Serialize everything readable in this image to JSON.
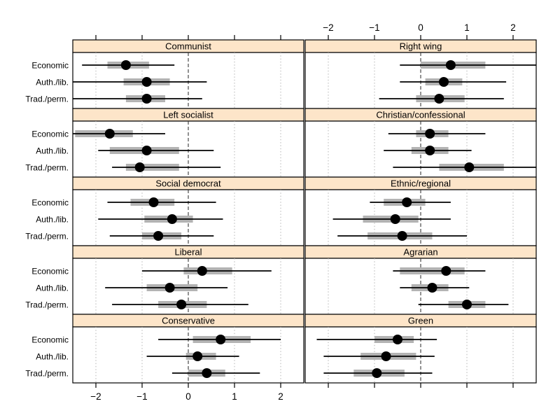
{
  "figure": {
    "background": "#ffffff",
    "strip_fill": "#fde5c9",
    "strip_border": "#000000",
    "panel_border": "#000000",
    "panel_fill": "#ffffff",
    "grid_color": "#b5b5b5",
    "zero_line_color": "#3a3a3a",
    "bar_color": "#b3b3b3",
    "line_color": "#000000",
    "dot_color": "#000000"
  },
  "chart_data": {
    "type": "dotplot",
    "description": "Trellis dotplot grid: party-family estimates on three policy dimensions with point estimate (dot), thick inner interval (grey bar) and thin outer interval (black line)",
    "layout": {
      "rows": 5,
      "cols": 2
    },
    "x_axis": {
      "min": -2.5,
      "max": 2.5,
      "ticks": [
        -2,
        -1,
        0,
        1,
        2
      ],
      "tick_labels": [
        "−2",
        "−1",
        "0",
        "1",
        "2"
      ],
      "top_labels_side": "right-column",
      "bottom_labels_side": "left-column",
      "zero_reference_line": true,
      "grid": "dotted-at-ticks"
    },
    "categories": [
      "Economic",
      "Auth./lib.",
      "Trad./perm."
    ],
    "panels": [
      {
        "title": "Communist",
        "grid_row": 0,
        "grid_col": 0,
        "estimates": [
          {
            "dim": "Economic",
            "dot": -1.35,
            "thick": [
              -1.75,
              -0.85
            ],
            "thin": [
              -2.3,
              -0.3
            ]
          },
          {
            "dim": "Auth./lib.",
            "dot": -0.9,
            "thick": [
              -1.4,
              -0.4
            ],
            "thin": [
              -2.5,
              0.4
            ]
          },
          {
            "dim": "Trad./perm.",
            "dot": -0.9,
            "thick": [
              -1.35,
              -0.5
            ],
            "thin": [
              -2.5,
              0.3
            ]
          }
        ]
      },
      {
        "title": "Right wing",
        "grid_row": 0,
        "grid_col": 1,
        "estimates": [
          {
            "dim": "Economic",
            "dot": 0.65,
            "thick": [
              0.0,
              1.4
            ],
            "thin": [
              -0.45,
              2.5
            ]
          },
          {
            "dim": "Auth./lib.",
            "dot": 0.5,
            "thick": [
              0.1,
              0.9
            ],
            "thin": [
              -0.45,
              1.85
            ]
          },
          {
            "dim": "Trad./perm.",
            "dot": 0.4,
            "thick": [
              -0.1,
              0.95
            ],
            "thin": [
              -0.9,
              1.8
            ]
          }
        ]
      },
      {
        "title": "Left socialist",
        "grid_row": 1,
        "grid_col": 0,
        "estimates": [
          {
            "dim": "Economic",
            "dot": -1.7,
            "thick": [
              -2.45,
              -1.2
            ],
            "thin": [
              -2.5,
              -0.5
            ]
          },
          {
            "dim": "Auth./lib.",
            "dot": -0.9,
            "thick": [
              -1.7,
              -0.2
            ],
            "thin": [
              -1.95,
              0.55
            ]
          },
          {
            "dim": "Trad./perm.",
            "dot": -1.05,
            "thick": [
              -1.35,
              -0.2
            ],
            "thin": [
              -1.65,
              0.7
            ]
          }
        ]
      },
      {
        "title": "Christian/confessional",
        "grid_row": 1,
        "grid_col": 1,
        "estimates": [
          {
            "dim": "Economic",
            "dot": 0.2,
            "thick": [
              -0.1,
              0.6
            ],
            "thin": [
              -0.7,
              1.4
            ]
          },
          {
            "dim": "Auth./lib.",
            "dot": 0.2,
            "thick": [
              -0.2,
              0.6
            ],
            "thin": [
              -0.8,
              1.1
            ]
          },
          {
            "dim": "Trad./perm.",
            "dot": 1.05,
            "thick": [
              0.4,
              1.8
            ],
            "thin": [
              -0.6,
              2.5
            ]
          }
        ]
      },
      {
        "title": "Social democrat",
        "grid_row": 2,
        "grid_col": 0,
        "estimates": [
          {
            "dim": "Economic",
            "dot": -0.75,
            "thick": [
              -1.25,
              -0.3
            ],
            "thin": [
              -1.75,
              0.6
            ]
          },
          {
            "dim": "Auth./lib.",
            "dot": -0.35,
            "thick": [
              -0.95,
              0.1
            ],
            "thin": [
              -1.95,
              0.75
            ]
          },
          {
            "dim": "Trad./perm.",
            "dot": -0.65,
            "thick": [
              -1.0,
              -0.15
            ],
            "thin": [
              -1.7,
              0.55
            ]
          }
        ]
      },
      {
        "title": "Ethnic/regional",
        "grid_row": 2,
        "grid_col": 1,
        "estimates": [
          {
            "dim": "Economic",
            "dot": -0.3,
            "thick": [
              -0.8,
              0.1
            ],
            "thin": [
              -1.1,
              0.65
            ]
          },
          {
            "dim": "Auth./lib.",
            "dot": -0.55,
            "thick": [
              -1.25,
              -0.05
            ],
            "thin": [
              -1.9,
              0.65
            ]
          },
          {
            "dim": "Trad./perm.",
            "dot": -0.4,
            "thick": [
              -1.15,
              0.25
            ],
            "thin": [
              -1.8,
              1.0
            ]
          }
        ]
      },
      {
        "title": "Liberal",
        "grid_row": 3,
        "grid_col": 0,
        "estimates": [
          {
            "dim": "Economic",
            "dot": 0.3,
            "thick": [
              -0.1,
              0.95
            ],
            "thin": [
              -1.0,
              1.8
            ]
          },
          {
            "dim": "Auth./lib.",
            "dot": -0.4,
            "thick": [
              -0.9,
              0.2
            ],
            "thin": [
              -1.8,
              0.85
            ]
          },
          {
            "dim": "Trad./perm.",
            "dot": -0.15,
            "thick": [
              -0.65,
              0.4
            ],
            "thin": [
              -1.65,
              1.3
            ]
          }
        ]
      },
      {
        "title": "Agrarian",
        "grid_row": 3,
        "grid_col": 1,
        "estimates": [
          {
            "dim": "Economic",
            "dot": 0.55,
            "thick": [
              -0.45,
              0.95
            ],
            "thin": [
              -0.6,
              1.4
            ]
          },
          {
            "dim": "Auth./lib.",
            "dot": 0.25,
            "thick": [
              -0.2,
              0.6
            ],
            "thin": [
              -0.45,
              1.05
            ]
          },
          {
            "dim": "Trad./perm.",
            "dot": 1.0,
            "thick": [
              0.6,
              1.4
            ],
            "thin": [
              -0.05,
              1.9
            ]
          }
        ]
      },
      {
        "title": "Conservative",
        "grid_row": 4,
        "grid_col": 0,
        "estimates": [
          {
            "dim": "Economic",
            "dot": 0.7,
            "thick": [
              0.1,
              1.35
            ],
            "thin": [
              -0.65,
              2.0
            ]
          },
          {
            "dim": "Auth./lib.",
            "dot": 0.2,
            "thick": [
              -0.05,
              0.6
            ],
            "thin": [
              -0.9,
              1.1
            ]
          },
          {
            "dim": "Trad./perm.",
            "dot": 0.4,
            "thick": [
              0.0,
              0.8
            ],
            "thin": [
              -0.35,
              1.55
            ]
          }
        ]
      },
      {
        "title": "Green",
        "grid_row": 4,
        "grid_col": 1,
        "estimates": [
          {
            "dim": "Economic",
            "dot": -0.5,
            "thick": [
              -1.0,
              -0.15
            ],
            "thin": [
              -2.25,
              0.35
            ]
          },
          {
            "dim": "Auth./lib.",
            "dot": -0.75,
            "thick": [
              -1.3,
              -0.1
            ],
            "thin": [
              -2.1,
              0.3
            ]
          },
          {
            "dim": "Trad./perm.",
            "dot": -0.95,
            "thick": [
              -1.45,
              -0.35
            ],
            "thin": [
              -2.1,
              0.25
            ]
          }
        ]
      }
    ]
  }
}
